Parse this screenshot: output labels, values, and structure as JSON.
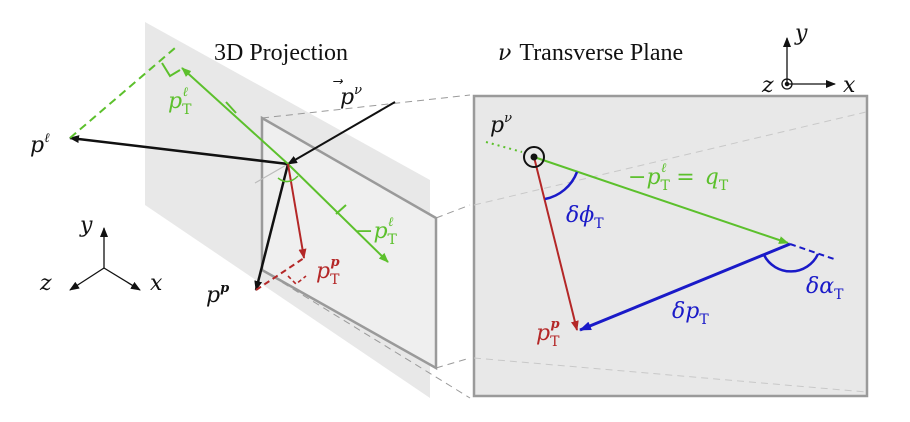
{
  "titles": {
    "left": "3D Projection",
    "right_symbol": "ν",
    "right": "Transverse Plane"
  },
  "axes_right": {
    "y": "y",
    "z": "z",
    "x": "x"
  },
  "axes_left": {
    "y": "y",
    "z": "z",
    "x": "x"
  },
  "labels": {
    "p": "p",
    "nu": "ν",
    "ell": "ℓ",
    "T": "T",
    "p_bold": "p",
    "minus": "−",
    "equals": "=",
    "q": "q",
    "delta": "δ",
    "phi": "ϕ",
    "alpha": "α"
  },
  "colors": {
    "green": "#5cc02c",
    "red": "#b42727",
    "blue": "#1a1ac8",
    "black": "#111111",
    "plane": "#e8e8e8",
    "plane_edge": "#9a9a9a"
  }
}
